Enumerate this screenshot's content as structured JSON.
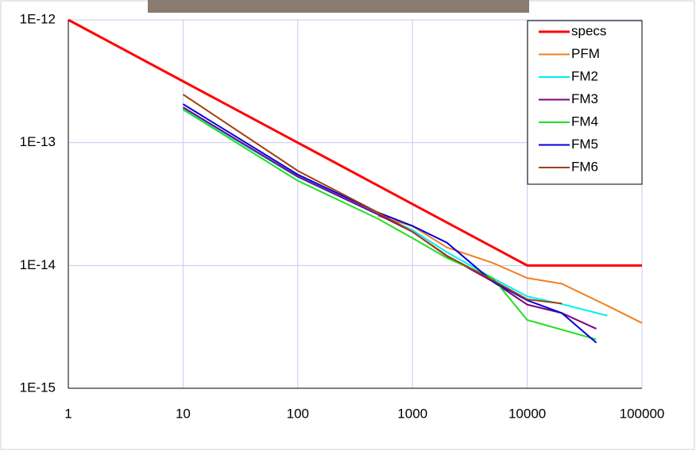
{
  "chart_data": {
    "type": "line",
    "log_x": true,
    "log_y": true,
    "grid": true,
    "legend": "top-right",
    "xlim": [
      1,
      100000
    ],
    "xticks": [
      1,
      10,
      100,
      1000,
      10000,
      100000
    ],
    "ylim": [
      1e-15,
      1e-12
    ],
    "yticks": [
      {
        "value": 1e-15,
        "label": "1E-15"
      },
      {
        "value": 1e-14,
        "label": "1E-14"
      },
      {
        "value": 1e-13,
        "label": "1E-13"
      },
      {
        "value": 1e-12,
        "label": "1E-12"
      }
    ],
    "series": [
      {
        "name": "specs",
        "color": "#ff0000",
        "x": [
          1,
          10,
          100,
          1000,
          10000,
          100000
        ],
        "values": [
          1e-12,
          3.16e-13,
          1e-13,
          3.16e-14,
          1e-14,
          1e-14
        ]
      },
      {
        "name": "PFM",
        "color": "#f08020",
        "x": [
          500,
          1000,
          2000,
          5000,
          10000,
          20000,
          50000,
          100000
        ],
        "values": [
          2.53e-14,
          2.09e-14,
          1.4e-14,
          1.05e-14,
          7.9e-15,
          7.1e-15,
          4.7e-15,
          3.4e-15
        ]
      },
      {
        "name": "FM2",
        "color": "#00f0f0",
        "x": [
          10,
          100,
          500,
          1000,
          2000,
          5000,
          10000,
          20000,
          50000
        ],
        "values": [
          1.89e-13,
          5.25e-14,
          2.6e-14,
          1.94e-14,
          1.28e-14,
          7.9e-15,
          5.6e-15,
          4.85e-15,
          3.9e-15
        ]
      },
      {
        "name": "FM3",
        "color": "#800080",
        "x": [
          10,
          100,
          500,
          1000,
          2000,
          5000,
          10000,
          20000,
          40000
        ],
        "values": [
          1.94e-13,
          5.3e-14,
          2.6e-14,
          1.88e-14,
          1.19e-14,
          7.4e-15,
          4.8e-15,
          4.1e-15,
          3.05e-15
        ]
      },
      {
        "name": "FM4",
        "color": "#20e020",
        "x": [
          10,
          100,
          500,
          1000,
          2000,
          5000,
          10000,
          40000
        ],
        "values": [
          1.86e-13,
          4.9e-14,
          2.4e-14,
          1.67e-14,
          1.15e-14,
          7.9e-15,
          3.6e-15,
          2.5e-15
        ]
      },
      {
        "name": "FM5",
        "color": "#0000e0",
        "x": [
          10,
          100,
          500,
          1000,
          2000,
          5000,
          10000,
          20000,
          40000
        ],
        "values": [
          2.06e-13,
          5.5e-14,
          2.7e-14,
          2.1e-14,
          1.53e-14,
          7.4e-15,
          5.2e-15,
          4.1e-15,
          2.35e-15
        ]
      },
      {
        "name": "FM6",
        "color": "#a04010",
        "x": [
          10,
          100,
          500,
          1000,
          2000,
          5000,
          10000,
          20000
        ],
        "values": [
          2.47e-13,
          5.9e-14,
          2.7e-14,
          1.88e-14,
          1.2e-14,
          7.6e-15,
          5.3e-15,
          4.9e-15
        ]
      }
    ]
  }
}
